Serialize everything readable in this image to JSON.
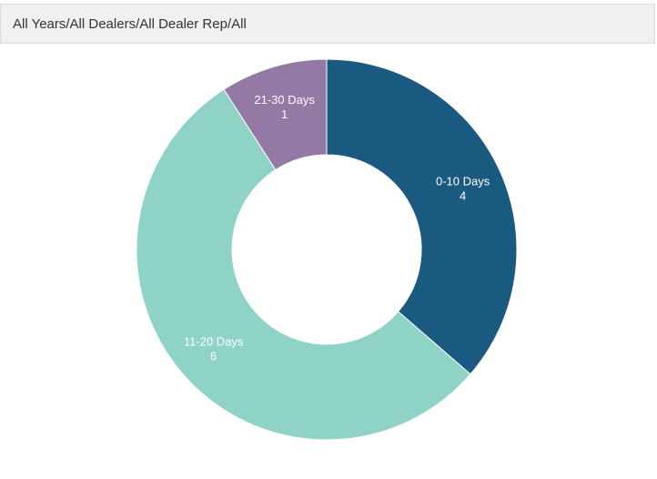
{
  "header": {
    "title": "All Years/All Dealers/All Dealer Rep/All"
  },
  "chart_data": {
    "type": "pie",
    "donut": true,
    "title": "",
    "categories": [
      "0-10 Days",
      "11-20 Days",
      "21-30 Days"
    ],
    "values": [
      4,
      6,
      1
    ],
    "colors": [
      "#1b5a80",
      "#8fd2c6",
      "#9479a5"
    ],
    "legend": "none",
    "data_labels": true
  }
}
